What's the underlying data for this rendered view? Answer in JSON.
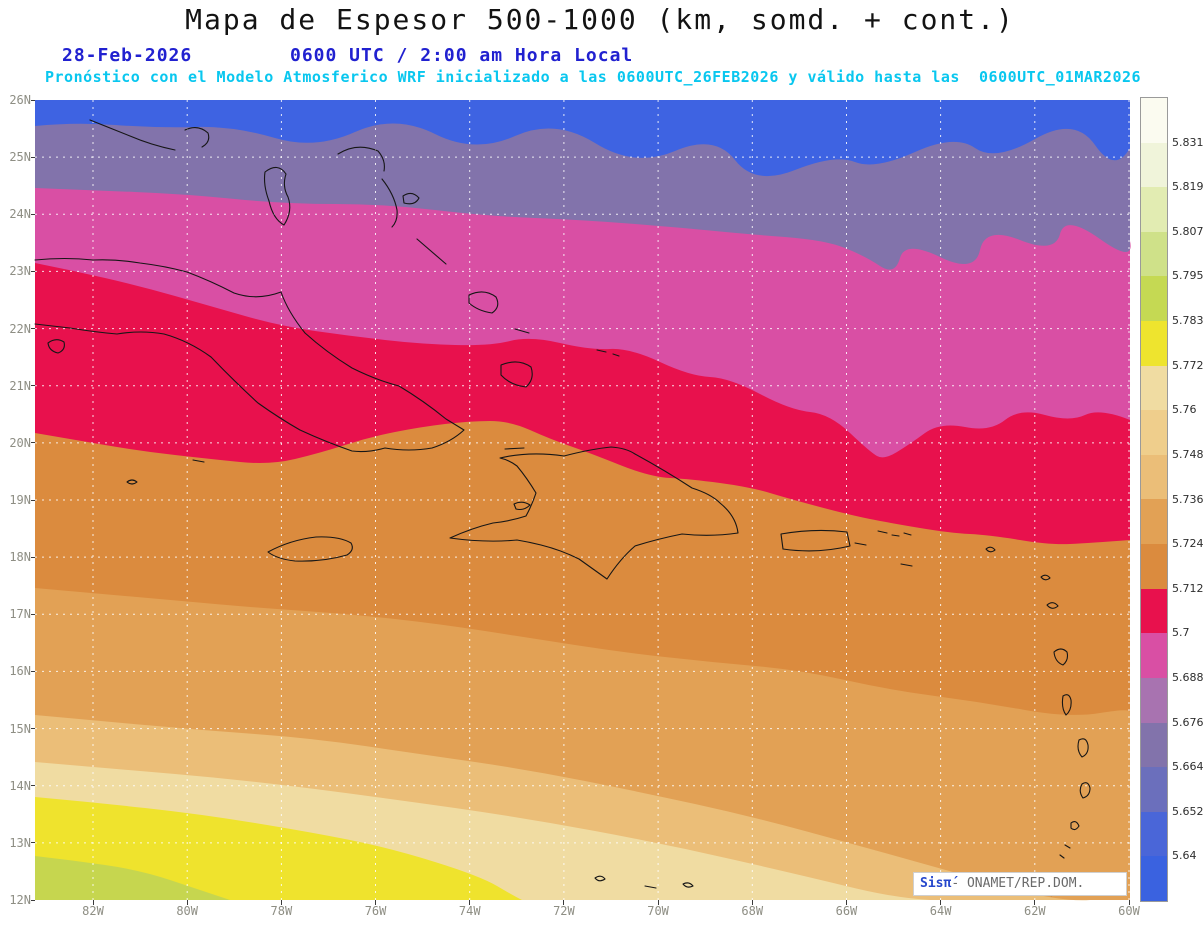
{
  "title": "Mapa de Espesor 500-1000 (km, somd. + cont.)",
  "subtitle": {
    "date": "28-Feb-2026",
    "time": "0600 UTC / 2:00 am Hora Local",
    "forecast": "Pronóstico con el Modelo Atmosferico WRF inicializado a las 0600UTC_26FEB2026 y válido hasta las  0600UTC_01MAR2026"
  },
  "watermark": {
    "brand": "Sisπ́",
    "credit": "- ONAMET/REP.DOM."
  },
  "map": {
    "lat_labels": [
      "26N",
      "25N",
      "24N",
      "23N",
      "22N",
      "21N",
      "20N",
      "19N",
      "18N",
      "17N",
      "16N",
      "15N",
      "14N",
      "13N",
      "12N"
    ],
    "lon_labels": [
      "82W",
      "80W",
      "78W",
      "76W",
      "74W",
      "72W",
      "70W",
      "68W",
      "66W",
      "64W",
      "62W",
      "60W"
    ]
  },
  "bands": {
    "blue": "#3E63E2",
    "purple": "#8273AB",
    "magenta": "#D94FA4",
    "crimson": "#E8114D",
    "orange_dark": "#DB8B3E",
    "orange": "#E2A155",
    "tan": "#EBBE78",
    "khaki": "#F0DCA2",
    "yellow": "#EFE32D",
    "green": "#C6D64F"
  },
  "colorbar": {
    "labels": [
      "5.831",
      "5.819",
      "5.807",
      "5.795",
      "5.783",
      "5.772",
      "5.76",
      "5.748",
      "5.736",
      "5.724",
      "5.712",
      "5.7",
      "5.688",
      "5.676",
      "5.664",
      "5.652",
      "5.64"
    ],
    "colors": [
      "#FBFBF0",
      "#F0F4DA",
      "#E2ECB2",
      "#CFE189",
      "#C5D953",
      "#EEE42E",
      "#F0DCA2",
      "#EFCE8C",
      "#EBBE78",
      "#E2A155",
      "#DB8B3E",
      "#E8114D",
      "#D94FA4",
      "#A873B0",
      "#8273AB",
      "#6B6FBC",
      "#4A66D8",
      "#3A62E0"
    ]
  }
}
